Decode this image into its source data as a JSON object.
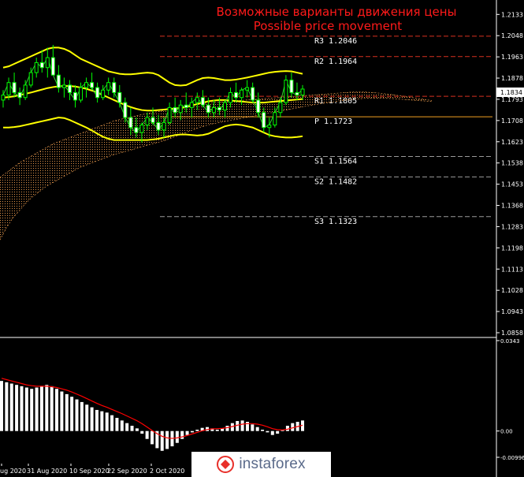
{
  "title": {
    "ru": "Возможные варианты движения цены",
    "en": "Possible price movement",
    "color": "#ff1a1a"
  },
  "current_price": "1.1834",
  "colors": {
    "background": "#000000",
    "axis_text": "#ffffff",
    "level_r": "#d7301f",
    "level_p": "#f0a020",
    "level_s": "#9a9a9a",
    "bollinger": "#ffff00",
    "price_bars": "#00ff00",
    "cloud": "#e0944a",
    "macd_hist": "#ffffff",
    "macd_signal": "#ff0000"
  },
  "brand_logo": "instaforex",
  "chart_data": [
    {
      "type": "line",
      "panel": "price",
      "ylim": [
        1.0858,
        1.2175
      ],
      "y_ticks": [
        "1.2133",
        "1.2048",
        "1.1963",
        "1.1878",
        "1.1793",
        "1.1708",
        "1.1623",
        "1.1538",
        "1.1453",
        "1.1368",
        "1.1283",
        "1.1198",
        "1.1113",
        "1.1028",
        "1.0943",
        "1.0858"
      ],
      "x_ticks": [
        "ug 2020",
        "31 Aug 2020",
        "10 Sep 2020",
        "22 Sep 2020",
        "2 Oct 2020"
      ],
      "levels": [
        {
          "name": "R3",
          "value": 1.2046,
          "label": "R3 1.2046"
        },
        {
          "name": "R2",
          "value": 1.1964,
          "label": "R2 1.1964"
        },
        {
          "name": "R1",
          "value": 1.1805,
          "label": "R1 1.1805"
        },
        {
          "name": "P",
          "value": 1.1723,
          "label": "P 1.1723"
        },
        {
          "name": "S1",
          "value": 1.1564,
          "label": "S1 1.1564"
        },
        {
          "name": "S2",
          "value": 1.1482,
          "label": "S2 1.1482"
        },
        {
          "name": "S3",
          "value": 1.1323,
          "label": "S3 1.1323"
        }
      ],
      "candles": [
        [
          1.179,
          1.183,
          1.176,
          1.181
        ],
        [
          1.181,
          1.188,
          1.179,
          1.186
        ],
        [
          1.186,
          1.19,
          1.18,
          1.182
        ],
        [
          1.182,
          1.184,
          1.177,
          1.18
        ],
        [
          1.18,
          1.187,
          1.179,
          1.185
        ],
        [
          1.185,
          1.192,
          1.184,
          1.19
        ],
        [
          1.19,
          1.196,
          1.188,
          1.194
        ],
        [
          1.194,
          1.199,
          1.19,
          1.192
        ],
        [
          1.192,
          1.2,
          1.188,
          1.196
        ],
        [
          1.196,
          1.2011,
          1.19,
          1.189
        ],
        [
          1.189,
          1.193,
          1.182,
          1.184
        ],
        [
          1.184,
          1.188,
          1.18,
          1.185
        ],
        [
          1.185,
          1.187,
          1.179,
          1.182
        ],
        [
          1.182,
          1.185,
          1.176,
          1.179
        ],
        [
          1.179,
          1.186,
          1.178,
          1.184
        ],
        [
          1.184,
          1.188,
          1.18,
          1.186
        ],
        [
          1.186,
          1.19,
          1.183,
          1.184
        ],
        [
          1.184,
          1.186,
          1.178,
          1.18
        ],
        [
          1.18,
          1.185,
          1.179,
          1.183
        ],
        [
          1.183,
          1.188,
          1.181,
          1.186
        ],
        [
          1.186,
          1.188,
          1.18,
          1.182
        ],
        [
          1.182,
          1.185,
          1.176,
          1.178
        ],
        [
          1.178,
          1.18,
          1.17,
          1.172
        ],
        [
          1.172,
          1.176,
          1.165,
          1.168
        ],
        [
          1.168,
          1.172,
          1.164,
          1.166
        ],
        [
          1.166,
          1.17,
          1.162,
          1.169
        ],
        [
          1.169,
          1.174,
          1.167,
          1.172
        ],
        [
          1.172,
          1.176,
          1.169,
          1.17
        ],
        [
          1.17,
          1.173,
          1.165,
          1.167
        ],
        [
          1.167,
          1.172,
          1.164,
          1.17
        ],
        [
          1.17,
          1.178,
          1.169,
          1.176
        ],
        [
          1.176,
          1.18,
          1.172,
          1.174
        ],
        [
          1.174,
          1.179,
          1.171,
          1.177
        ],
        [
          1.177,
          1.182,
          1.174,
          1.176
        ],
        [
          1.176,
          1.18,
          1.172,
          1.178
        ],
        [
          1.178,
          1.182,
          1.175,
          1.18
        ],
        [
          1.18,
          1.183,
          1.176,
          1.177
        ],
        [
          1.177,
          1.18,
          1.172,
          1.174
        ],
        [
          1.174,
          1.179,
          1.172,
          1.176
        ],
        [
          1.176,
          1.18,
          1.173,
          1.175
        ],
        [
          1.175,
          1.179,
          1.172,
          1.178
        ],
        [
          1.178,
          1.184,
          1.176,
          1.182
        ],
        [
          1.182,
          1.186,
          1.178,
          1.18
        ],
        [
          1.18,
          1.184,
          1.177,
          1.183
        ],
        [
          1.183,
          1.187,
          1.18,
          1.184
        ],
        [
          1.184,
          1.186,
          1.178,
          1.179
        ],
        [
          1.179,
          1.182,
          1.172,
          1.174
        ],
        [
          1.174,
          1.176,
          1.166,
          1.168
        ],
        [
          1.168,
          1.172,
          1.164,
          1.169
        ],
        [
          1.169,
          1.176,
          1.168,
          1.174
        ],
        [
          1.174,
          1.18,
          1.172,
          1.178
        ],
        [
          1.178,
          1.189,
          1.177,
          1.187
        ],
        [
          1.187,
          1.19,
          1.18,
          1.182
        ],
        [
          1.182,
          1.186,
          1.179,
          1.181
        ],
        [
          1.181,
          1.185,
          1.179,
          1.1834
        ]
      ],
      "bb_upper": [
        1.192,
        1.1925,
        1.1935,
        1.1945,
        1.1955,
        1.1965,
        1.1975,
        1.1985,
        1.1995,
        1.2,
        1.2,
        1.1995,
        1.1985,
        1.197,
        1.1955,
        1.1945,
        1.1935,
        1.1925,
        1.1915,
        1.1905,
        1.19,
        1.1895,
        1.1893,
        1.1893,
        1.1895,
        1.1898,
        1.19,
        1.1898,
        1.189,
        1.1875,
        1.186,
        1.185,
        1.1848,
        1.185,
        1.186,
        1.187,
        1.1878,
        1.188,
        1.1878,
        1.1874,
        1.187,
        1.187,
        1.1872,
        1.1876,
        1.188,
        1.1885,
        1.189,
        1.1895,
        1.19,
        1.1903,
        1.1905,
        1.1906,
        1.1905,
        1.19,
        1.1895
      ],
      "bb_middle": [
        1.18,
        1.1802,
        1.1805,
        1.181,
        1.1815,
        1.182,
        1.1826,
        1.1832,
        1.1838,
        1.1842,
        1.1845,
        1.1846,
        1.1846,
        1.1844,
        1.184,
        1.1835,
        1.1828,
        1.182,
        1.181,
        1.18,
        1.179,
        1.178,
        1.177,
        1.1762,
        1.1755,
        1.175,
        1.1748,
        1.1748,
        1.175,
        1.1752,
        1.1754,
        1.1756,
        1.1758,
        1.1762,
        1.1768,
        1.1774,
        1.178,
        1.1785,
        1.1788,
        1.179,
        1.179,
        1.1788,
        1.1786,
        1.1784,
        1.1782,
        1.178,
        1.178,
        1.178,
        1.1782,
        1.1784,
        1.1786,
        1.1788,
        1.179,
        1.1792,
        1.1794
      ],
      "bb_lower": [
        1.168,
        1.168,
        1.1682,
        1.1685,
        1.169,
        1.1695,
        1.17,
        1.1705,
        1.171,
        1.1715,
        1.172,
        1.1718,
        1.171,
        1.17,
        1.169,
        1.168,
        1.1668,
        1.1655,
        1.1643,
        1.1635,
        1.163,
        1.163,
        1.163,
        1.163,
        1.163,
        1.163,
        1.163,
        1.1632,
        1.1635,
        1.164,
        1.1645,
        1.165,
        1.1652,
        1.1652,
        1.165,
        1.1648,
        1.165,
        1.1655,
        1.1665,
        1.1675,
        1.1685,
        1.169,
        1.1692,
        1.169,
        1.1685,
        1.168,
        1.167,
        1.166,
        1.165,
        1.1645,
        1.1642,
        1.164,
        1.164,
        1.1642,
        1.1645
      ],
      "cloud_top": [
        1.148,
        1.15,
        1.152,
        1.154,
        1.1555,
        1.157,
        1.1585,
        1.16,
        1.1615,
        1.1625,
        1.1635,
        1.1645,
        1.1655,
        1.1665,
        1.1675,
        1.1685,
        1.1695,
        1.1705,
        1.1712,
        1.1718,
        1.1724,
        1.173,
        1.1735,
        1.174,
        1.1745,
        1.175,
        1.1755,
        1.176,
        1.1765,
        1.177,
        1.1775,
        1.1778,
        1.178,
        1.1782,
        1.1784,
        1.1786,
        1.1788,
        1.179,
        1.1792,
        1.1794,
        1.1796,
        1.1798,
        1.18,
        1.1802,
        1.1804,
        1.1806,
        1.1808,
        1.181,
        1.1812,
        1.1814,
        1.1816,
        1.1818,
        1.182,
        1.1822,
        1.1822,
        1.1822,
        1.182,
        1.1818,
        1.1815,
        1.1812,
        1.1808,
        1.1804,
        1.18,
        1.1796,
        1.1792,
        1.1788
      ],
      "cloud_bottom": [
        1.123,
        1.128,
        1.132,
        1.135,
        1.138,
        1.1405,
        1.1425,
        1.1445,
        1.146,
        1.1475,
        1.149,
        1.1505,
        1.152,
        1.153,
        1.154,
        1.155,
        1.156,
        1.157,
        1.1578,
        1.1585,
        1.1592,
        1.16,
        1.1608,
        1.1615,
        1.1622,
        1.163,
        1.164,
        1.165,
        1.166,
        1.167,
        1.168,
        1.1688,
        1.1695,
        1.17,
        1.1705,
        1.171,
        1.1715,
        1.172,
        1.1725,
        1.173,
        1.1735,
        1.174,
        1.1745,
        1.175,
        1.1755,
        1.176,
        1.1765,
        1.177,
        1.1774,
        1.1778,
        1.1782,
        1.1786,
        1.179,
        1.1793,
        1.1795,
        1.1797,
        1.1798,
        1.1798,
        1.1797,
        1.1796,
        1.1794,
        1.1792,
        1.179,
        1.1788,
        1.1786,
        1.1784
      ]
    },
    {
      "type": "bar",
      "panel": "macd",
      "ylim": [
        -0.00996,
        0.0343
      ],
      "y_ticks": [
        "0.0343",
        "0.00",
        "-0.00996"
      ],
      "values": [
        0.019,
        0.0185,
        0.018,
        0.0175,
        0.017,
        0.0165,
        0.016,
        0.0165,
        0.017,
        0.0175,
        0.017,
        0.016,
        0.015,
        0.014,
        0.013,
        0.012,
        0.011,
        0.01,
        0.009,
        0.008,
        0.0075,
        0.007,
        0.006,
        0.005,
        0.004,
        0.003,
        0.002,
        0.001,
        -0.001,
        -0.003,
        -0.005,
        -0.0065,
        -0.0075,
        -0.0068,
        -0.0058,
        -0.0045,
        -0.003,
        -0.0015,
        -0.0005,
        0.0005,
        0.0012,
        0.0015,
        0.001,
        0.0005,
        0.001,
        0.002,
        0.003,
        0.0038,
        0.004,
        0.0035,
        0.0025,
        0.0015,
        0.0005,
        -0.0005,
        -0.0015,
        -0.001,
        0.0005,
        0.002,
        0.003,
        0.0035,
        0.004
      ],
      "signal": [
        0.02,
        0.0195,
        0.019,
        0.0185,
        0.018,
        0.0175,
        0.0172,
        0.017,
        0.017,
        0.017,
        0.0168,
        0.0165,
        0.016,
        0.0155,
        0.0148,
        0.014,
        0.0132,
        0.0123,
        0.0114,
        0.0105,
        0.0097,
        0.009,
        0.0082,
        0.0074,
        0.0066,
        0.0057,
        0.0048,
        0.0039,
        0.0028,
        0.0015,
        0.0002,
        -0.001,
        -0.002,
        -0.0026,
        -0.0028,
        -0.0026,
        -0.0022,
        -0.0017,
        -0.0011,
        -0.0005,
        0.0001,
        0.0006,
        0.0008,
        0.0009,
        0.001,
        0.0013,
        0.0017,
        0.0022,
        0.0026,
        0.0028,
        0.0028,
        0.0026,
        0.0022,
        0.0016,
        0.0009,
        0.0005,
        0.0004,
        0.0007,
        0.0012,
        0.0017,
        0.0022
      ]
    }
  ]
}
